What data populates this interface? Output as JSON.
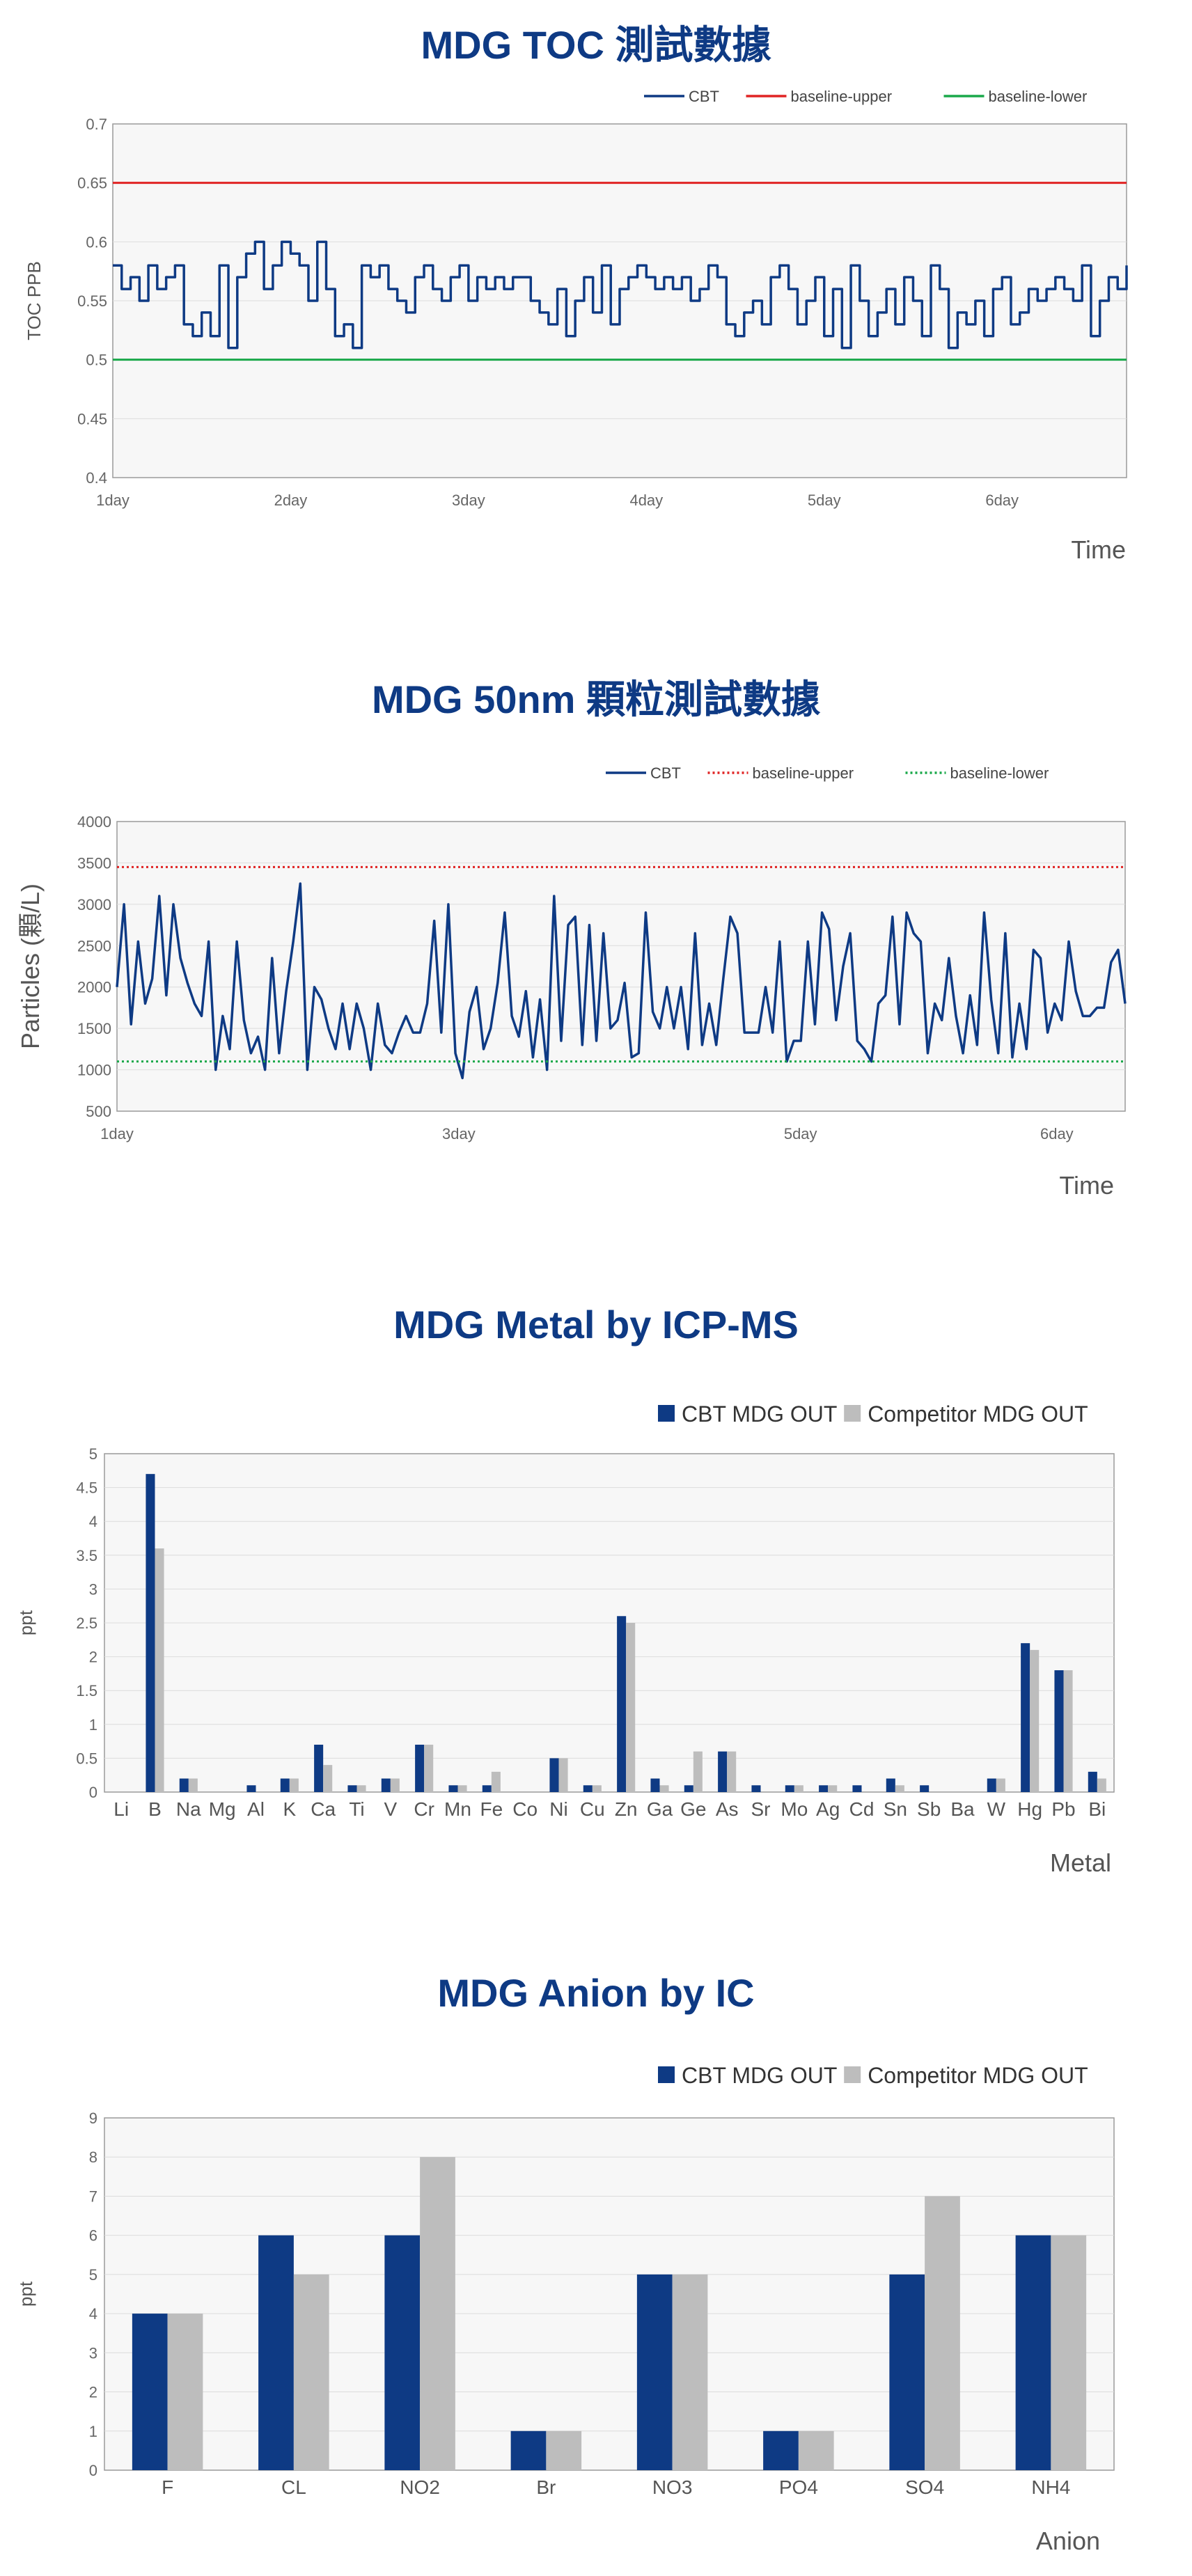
{
  "chart_data": [
    {
      "type": "line",
      "title": "MDG TOC  測試數據",
      "xlabel": "Time",
      "ylabel": "TOC PPB",
      "ylim": [
        0.4,
        0.7
      ],
      "yticks": [
        "0.4",
        "0.45",
        "0.5",
        "0.55",
        "0.6",
        "0.65",
        "0.7"
      ],
      "xticks": [
        {
          "label": "1day",
          "x": 1
        },
        {
          "label": "2day",
          "x": 2
        },
        {
          "label": "3day",
          "x": 3
        },
        {
          "label": "4day",
          "x": 4
        },
        {
          "label": "5day",
          "x": 5
        },
        {
          "label": "6day",
          "x": 6
        }
      ],
      "xlim": [
        1,
        6.7
      ],
      "grid": true,
      "legend": "top-right",
      "series": [
        {
          "name": "CBT",
          "color": "#0e3a84",
          "step": true,
          "x": [
            1.0,
            1.05,
            1.1,
            1.15,
            1.2,
            1.25,
            1.3,
            1.35,
            1.4,
            1.45,
            1.5,
            1.55,
            1.6,
            1.65,
            1.7,
            1.75,
            1.8,
            1.85,
            1.9,
            1.95,
            2.0,
            2.05,
            2.1,
            2.15,
            2.2,
            2.25,
            2.3,
            2.35,
            2.4,
            2.45,
            2.5,
            2.55,
            2.6,
            2.65,
            2.7,
            2.75,
            2.8,
            2.85,
            2.9,
            2.95,
            3.0,
            3.05,
            3.1,
            3.15,
            3.2,
            3.25,
            3.3,
            3.35,
            3.4,
            3.45,
            3.5,
            3.55,
            3.6,
            3.65,
            3.7,
            3.75,
            3.8,
            3.85,
            3.9,
            3.95,
            4.0,
            4.05,
            4.1,
            4.15,
            4.2,
            4.25,
            4.3,
            4.35,
            4.4,
            4.45,
            4.5,
            4.55,
            4.6,
            4.65,
            4.7,
            4.75,
            4.8,
            4.85,
            4.9,
            4.95,
            5.0,
            5.05,
            5.1,
            5.15,
            5.2,
            5.25,
            5.3,
            5.35,
            5.4,
            5.45,
            5.5,
            5.55,
            5.6,
            5.65,
            5.7,
            5.75,
            5.8,
            5.85,
            5.9,
            5.95,
            6.0,
            6.05,
            6.1,
            6.15,
            6.2,
            6.25,
            6.3,
            6.35,
            6.4,
            6.45,
            6.5,
            6.55,
            6.6,
            6.65,
            6.7
          ],
          "values": [
            0.58,
            0.56,
            0.57,
            0.55,
            0.58,
            0.56,
            0.57,
            0.58,
            0.53,
            0.52,
            0.54,
            0.52,
            0.58,
            0.51,
            0.57,
            0.59,
            0.6,
            0.56,
            0.58,
            0.6,
            0.59,
            0.58,
            0.55,
            0.6,
            0.56,
            0.52,
            0.53,
            0.51,
            0.58,
            0.57,
            0.58,
            0.56,
            0.55,
            0.54,
            0.57,
            0.58,
            0.56,
            0.55,
            0.57,
            0.58,
            0.55,
            0.57,
            0.56,
            0.57,
            0.56,
            0.57,
            0.57,
            0.55,
            0.54,
            0.53,
            0.56,
            0.52,
            0.55,
            0.57,
            0.54,
            0.58,
            0.53,
            0.56,
            0.57,
            0.58,
            0.57,
            0.56,
            0.57,
            0.56,
            0.57,
            0.55,
            0.56,
            0.58,
            0.57,
            0.53,
            0.52,
            0.54,
            0.55,
            0.53,
            0.57,
            0.58,
            0.56,
            0.53,
            0.55,
            0.57,
            0.52,
            0.56,
            0.51,
            0.58,
            0.55,
            0.52,
            0.54,
            0.56,
            0.53,
            0.57,
            0.55,
            0.52,
            0.58,
            0.56,
            0.51,
            0.54,
            0.53,
            0.55,
            0.52,
            0.56,
            0.57,
            0.53,
            0.54,
            0.56,
            0.55,
            0.56,
            0.57,
            0.56,
            0.55,
            0.58,
            0.52,
            0.55,
            0.57,
            0.56,
            0.58
          ]
        },
        {
          "name": "baseline-upper",
          "color": "#e02424",
          "constant": 0.65
        },
        {
          "name": "baseline-lower",
          "color": "#1aa84a",
          "constant": 0.5
        }
      ]
    },
    {
      "type": "line",
      "title": "MDG 50nm 顆粒測試數據",
      "xlabel": "Time",
      "ylabel": "Particles  (顆/L)",
      "ylim": [
        500,
        4000
      ],
      "yticks": [
        "500",
        "1000",
        "1500",
        "2000",
        "2500",
        "3000",
        "3500",
        "4000"
      ],
      "xticks": [
        {
          "label": "1day",
          "x": 1
        },
        {
          "label": "3day",
          "x": 3
        },
        {
          "label": "5day",
          "x": 5
        },
        {
          "label": "6day",
          "x": 6.5
        }
      ],
      "xlim": [
        1,
        6.9
      ],
      "grid": true,
      "legend": "top-right",
      "series": [
        {
          "name": "CBT",
          "color": "#0e3a84",
          "values": [
            2000,
            3000,
            1550,
            2550,
            1800,
            2100,
            3100,
            1900,
            3000,
            2350,
            2050,
            1800,
            1650,
            2550,
            1000,
            1650,
            1250,
            2550,
            1600,
            1200,
            1400,
            1000,
            2350,
            1200,
            1950,
            2550,
            3250,
            1000,
            2000,
            1850,
            1500,
            1250,
            1800,
            1250,
            1800,
            1500,
            1000,
            1800,
            1300,
            1200,
            1450,
            1650,
            1450,
            1450,
            1800,
            2800,
            1450,
            3000,
            1200,
            900,
            1700,
            2000,
            1250,
            1500,
            2050,
            2900,
            1650,
            1400,
            1950,
            1150,
            1850,
            1000,
            3100,
            1350,
            2750,
            2850,
            1300,
            2750,
            1350,
            2650,
            1500,
            1600,
            2050,
            1150,
            1200,
            2900,
            1700,
            1500,
            2000,
            1500,
            2000,
            1250,
            2650,
            1300,
            1800,
            1300,
            2100,
            2850,
            2650,
            1450,
            1450,
            1450,
            2000,
            1450,
            2550,
            1100,
            1350,
            1350,
            2550,
            1550,
            2900,
            2700,
            1600,
            2250,
            2650,
            1350,
            1250,
            1100,
            1800,
            1900,
            2850,
            1550,
            2900,
            2650,
            2550,
            1200,
            1800,
            1600,
            2350,
            1650,
            1200,
            1900,
            1300,
            2900,
            1850,
            1200,
            2650,
            1150,
            1800,
            1250,
            2450,
            2350,
            1450,
            1800,
            1600,
            2550,
            1950,
            1650,
            1650,
            1750,
            1750,
            2300,
            2450,
            1800
          ]
        },
        {
          "name": "baseline-upper",
          "color": "#e02424",
          "constant": 3450,
          "dotted": true
        },
        {
          "name": "baseline-lower",
          "color": "#1aa84a",
          "constant": 1100,
          "dotted": true
        }
      ]
    },
    {
      "type": "bar",
      "title": "MDG Metal by ICP-MS",
      "xlabel": "Metal",
      "ylabel": "ppt",
      "ylim": [
        0,
        5
      ],
      "yticks": [
        "0",
        "0.5",
        "1",
        "1.5",
        "2",
        "2.5",
        "3",
        "3.5",
        "4",
        "4.5",
        "5"
      ],
      "grid": true,
      "legend": "top-right",
      "categories": [
        "Li",
        "B",
        "Na",
        "Mg",
        "Al",
        "K",
        "Ca",
        "Ti",
        "V",
        "Cr",
        "Mn",
        "Fe",
        "Co",
        "Ni",
        "Cu",
        "Zn",
        "Ga",
        "Ge",
        "As",
        "Sr",
        "Mo",
        "Ag",
        "Cd",
        "Sn",
        "Sb",
        "Ba",
        "W",
        "Hg",
        "Pb",
        "Bi"
      ],
      "series": [
        {
          "name": "CBT MDG OUT",
          "color": "#0e3a84",
          "values": [
            0,
            4.7,
            0.2,
            0,
            0.1,
            0.2,
            0.7,
            0.1,
            0.2,
            0.7,
            0.1,
            0.1,
            0,
            0.5,
            0.1,
            2.6,
            0.2,
            0.1,
            0.6,
            0.1,
            0.1,
            0.1,
            0.1,
            0.2,
            0.1,
            0,
            0.2,
            2.2,
            1.8,
            0.3
          ]
        },
        {
          "name": "Competitor MDG OUT",
          "color": "#bdbdbd",
          "values": [
            0,
            3.6,
            0.2,
            0,
            0,
            0.2,
            0.4,
            0.1,
            0.2,
            0.7,
            0.1,
            0.3,
            0,
            0.5,
            0.1,
            2.5,
            0.1,
            0.6,
            0.6,
            0,
            0.1,
            0.1,
            0,
            0.1,
            0,
            0,
            0.2,
            2.1,
            1.8,
            0.2
          ]
        }
      ]
    },
    {
      "type": "bar",
      "title": "MDG  Anion by IC",
      "xlabel": "Anion",
      "ylabel": "ppt",
      "ylim": [
        0,
        9
      ],
      "yticks": [
        "0",
        "1",
        "2",
        "3",
        "4",
        "5",
        "6",
        "7",
        "8",
        "9"
      ],
      "grid": true,
      "legend": "top-right",
      "categories": [
        "F",
        "CL",
        "NO2",
        "Br",
        "NO3",
        "PO4",
        "SO4",
        "NH4"
      ],
      "series": [
        {
          "name": "CBT MDG OUT",
          "color": "#0e3a84",
          "values": [
            4,
            6,
            6,
            1,
            5,
            1,
            5,
            6
          ]
        },
        {
          "name": "Competitor MDG OUT",
          "color": "#bdbdbd",
          "values": [
            4,
            5,
            8,
            1,
            5,
            1,
            7,
            6
          ]
        }
      ]
    }
  ]
}
